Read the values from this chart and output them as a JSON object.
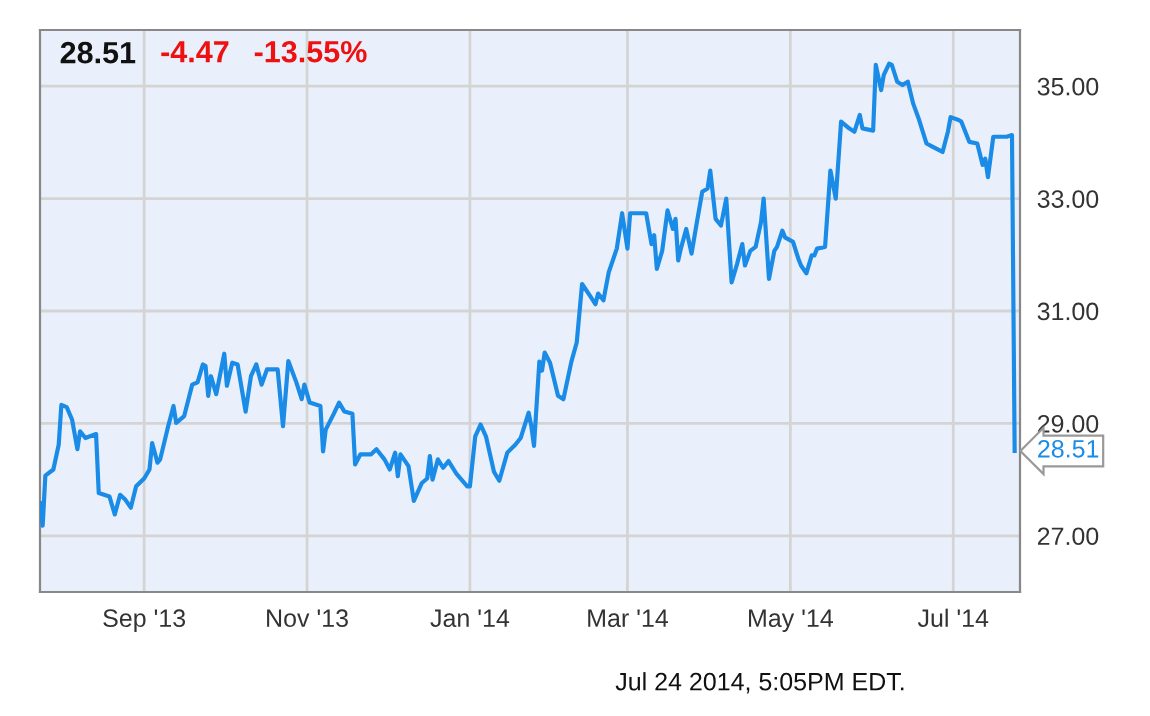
{
  "chart_data": {
    "type": "line",
    "title": "28.51",
    "annotations": [
      "-4.47",
      "-13.55%",
      {
        "text": "28.51",
        "x": "2014-07-24",
        "y": 28.51
      },
      "Jul 24 2014, 5:05PM EDT."
    ],
    "x": [
      "2013-07-24",
      "2013-07-25",
      "2013-07-26",
      "2013-07-29",
      "2013-07-31",
      "2013-08-01",
      "2013-08-03",
      "2013-08-05",
      "2013-08-07",
      "2013-08-08",
      "2013-08-10",
      "2013-08-14",
      "2013-08-15",
      "2013-08-19",
      "2013-08-21",
      "2013-08-23",
      "2013-08-25",
      "2013-08-27",
      "2013-08-29",
      "2013-09-01",
      "2013-09-03",
      "2013-09-04",
      "2013-09-06",
      "2013-09-07",
      "2013-09-10",
      "2013-09-12",
      "2013-09-13",
      "2013-09-16",
      "2013-09-19",
      "2013-09-21",
      "2013-09-23",
      "2013-09-24",
      "2013-09-25",
      "2013-09-26",
      "2013-09-28",
      "2013-10-01",
      "2013-10-02",
      "2013-10-04",
      "2013-10-06",
      "2013-10-09",
      "2013-10-11",
      "2013-10-13",
      "2013-10-15",
      "2013-10-17",
      "2013-10-21",
      "2013-10-23",
      "2013-10-25",
      "2013-10-28",
      "2013-10-30",
      "2013-10-31",
      "2013-11-02",
      "2013-11-06",
      "2013-11-07",
      "2013-11-08",
      "2013-11-11",
      "2013-11-13",
      "2013-11-15",
      "2013-11-18",
      "2013-11-19",
      "2013-11-21",
      "2013-11-25",
      "2013-11-27",
      "2013-11-30",
      "2013-12-02",
      "2013-12-04",
      "2013-12-05",
      "2013-12-06",
      "2013-12-09",
      "2013-12-11",
      "2013-12-14",
      "2013-12-16",
      "2013-12-17",
      "2013-12-18",
      "2013-12-20",
      "2013-12-22",
      "2013-12-24",
      "2013-12-27",
      "2013-12-31",
      "2014-01-01",
      "2014-01-03",
      "2014-01-05",
      "2014-01-07",
      "2014-01-10",
      "2014-01-12",
      "2014-01-15",
      "2014-01-18",
      "2014-01-20",
      "2014-01-23",
      "2014-01-24",
      "2014-01-25",
      "2014-01-27",
      "2014-01-28",
      "2014-01-29",
      "2014-01-31",
      "2014-02-03",
      "2014-02-05",
      "2014-02-08",
      "2014-02-10",
      "2014-02-12",
      "2014-02-15",
      "2014-02-17",
      "2014-02-18",
      "2014-02-20",
      "2014-02-22",
      "2014-02-25",
      "2014-02-27",
      "2014-03-01",
      "2014-03-02",
      "2014-03-05",
      "2014-03-08",
      "2014-03-10",
      "2014-03-11",
      "2014-03-12",
      "2014-03-14",
      "2014-03-16",
      "2014-03-18",
      "2014-03-19",
      "2014-03-20",
      "2014-03-21",
      "2014-03-23",
      "2014-03-25",
      "2014-03-27",
      "2014-03-29",
      "2014-03-31",
      "2014-04-01",
      "2014-04-03",
      "2014-04-05",
      "2014-04-07",
      "2014-04-09",
      "2014-04-11",
      "2014-04-13",
      "2014-04-14",
      "2014-04-16",
      "2014-04-18",
      "2014-04-20",
      "2014-04-21",
      "2014-04-23",
      "2014-04-25",
      "2014-04-26",
      "2014-04-28",
      "2014-04-29",
      "2014-05-02",
      "2014-05-04",
      "2014-05-05",
      "2014-05-07",
      "2014-05-09",
      "2014-05-10",
      "2014-05-11",
      "2014-05-14",
      "2014-05-16",
      "2014-05-18",
      "2014-05-20",
      "2014-05-23",
      "2014-05-25",
      "2014-05-27",
      "2014-05-28",
      "2014-06-01",
      "2014-06-02",
      "2014-06-04",
      "2014-06-05",
      "2014-06-07",
      "2014-06-08",
      "2014-06-10",
      "2014-06-12",
      "2014-06-14",
      "2014-06-16",
      "2014-06-18",
      "2014-06-21",
      "2014-06-23",
      "2014-06-27",
      "2014-06-29",
      "2014-06-30",
      "2014-07-03",
      "2014-07-04",
      "2014-07-07",
      "2014-07-10",
      "2014-07-12",
      "2014-07-13",
      "2014-07-14",
      "2014-07-16",
      "2014-07-21",
      "2014-07-23",
      "2014-07-24"
    ],
    "series": [
      {
        "color": "#1a8be6",
        "values": [
          27.58,
          27.18,
          28.07,
          28.18,
          28.62,
          29.33,
          29.29,
          29.07,
          28.54,
          28.86,
          28.74,
          28.81,
          27.76,
          27.7,
          27.38,
          27.73,
          27.64,
          27.5,
          27.88,
          28.02,
          28.18,
          28.65,
          28.3,
          28.36,
          28.95,
          29.31,
          29.01,
          29.13,
          29.69,
          29.73,
          30.05,
          30.02,
          29.49,
          29.84,
          29.52,
          30.24,
          29.67,
          30.08,
          30.05,
          29.21,
          29.84,
          30.05,
          29.69,
          29.96,
          29.96,
          28.95,
          30.11,
          29.73,
          29.43,
          29.69,
          29.37,
          29.31,
          28.5,
          28.89,
          29.17,
          29.37,
          29.21,
          29.17,
          28.27,
          28.45,
          28.45,
          28.54,
          28.36,
          28.18,
          28.48,
          28.06,
          28.45,
          28.24,
          27.62,
          27.94,
          28.02,
          28.42,
          28.0,
          28.36,
          28.21,
          28.33,
          28.1,
          27.88,
          27.88,
          28.77,
          28.98,
          28.77,
          28.14,
          27.98,
          28.48,
          28.62,
          28.74,
          29.19,
          28.95,
          28.6,
          30.1,
          29.94,
          30.26,
          30.08,
          29.49,
          29.43,
          30.1,
          30.44,
          31.48,
          31.27,
          31.12,
          31.31,
          31.19,
          31.69,
          32.11,
          32.74,
          32.11,
          32.74,
          32.74,
          32.74,
          32.19,
          32.35,
          31.75,
          32.07,
          32.79,
          32.46,
          32.64,
          31.9,
          32.11,
          32.46,
          32.02,
          32.58,
          33.12,
          33.18,
          33.5,
          32.64,
          32.52,
          33.0,
          31.51,
          31.83,
          32.19,
          31.81,
          32.07,
          32.14,
          32.58,
          33.0,
          31.57,
          32.07,
          32.14,
          32.43,
          32.31,
          32.23,
          31.93,
          31.81,
          31.67,
          31.99,
          31.99,
          32.11,
          32.14,
          33.5,
          33.0,
          34.37,
          34.25,
          34.19,
          34.49,
          34.25,
          34.21,
          35.38,
          34.93,
          35.2,
          35.4,
          35.38,
          35.08,
          35.02,
          35.08,
          34.69,
          34.43,
          33.98,
          33.93,
          33.83,
          34.19,
          34.45,
          34.4,
          34.37,
          34.01,
          33.98,
          33.6,
          33.71,
          33.38,
          34.1,
          34.1,
          34.13,
          28.51
        ]
      }
    ],
    "xlim": [
      "2013-07-24",
      "2014-07-26"
    ],
    "xticks": [
      {
        "value": "2013-09-01",
        "label": "Sep '13"
      },
      {
        "value": "2013-11-01",
        "label": "Nov '13"
      },
      {
        "value": "2014-01-01",
        "label": "Jan '14"
      },
      {
        "value": "2014-03-01",
        "label": "Mar '14"
      },
      {
        "value": "2014-05-01",
        "label": "May '14"
      },
      {
        "value": "2014-07-01",
        "label": "Jul '14"
      }
    ],
    "ylim": [
      26,
      36
    ],
    "yticks": [
      {
        "value": 27,
        "label": "27.00"
      },
      {
        "value": 29,
        "label": "29.00"
      },
      {
        "value": 31,
        "label": "31.00"
      },
      {
        "value": 33,
        "label": "33.00"
      },
      {
        "value": 35,
        "label": "35.00"
      }
    ],
    "grid": true,
    "marker": "none",
    "line_style": "solid"
  }
}
